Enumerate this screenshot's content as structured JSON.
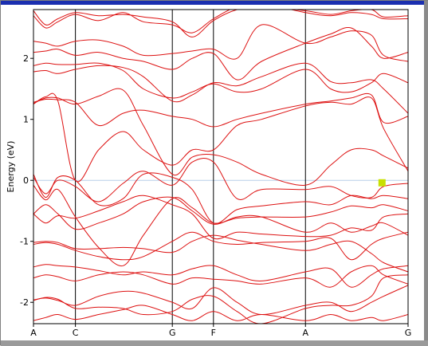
{
  "chart_data": {
    "type": "line",
    "title": "",
    "xlabel": "",
    "ylabel": "Energy (eV)",
    "ylim": [
      -2.35,
      2.8
    ],
    "xlim": [
      0,
      9.2
    ],
    "y_ticks": [
      {
        "value": 2,
        "label": "2"
      },
      {
        "value": 1,
        "label": "1"
      },
      {
        "value": 0,
        "label": "0"
      },
      {
        "value": -1,
        "label": "-1"
      },
      {
        "value": -2,
        "label": "-2"
      }
    ],
    "k_points": [
      {
        "label": "A",
        "x": 0
      },
      {
        "label": "C",
        "x": 1.03
      },
      {
        "label": "G",
        "x": 3.41
      },
      {
        "label": "F",
        "x": 4.42
      },
      {
        "label": "A",
        "x": 6.68
      },
      {
        "label": "G",
        "x": 9.2
      }
    ],
    "fermi_level": 0,
    "marker": {
      "x": 8.56,
      "y": -0.04,
      "color": "#c8e000"
    },
    "series_color": "#dd1111",
    "bands": [
      {
        "x": [
          0,
          0.3,
          0.6,
          1.03,
          1.6,
          2.2,
          2.7,
          3.41,
          3.9,
          4.42,
          5.0,
          5.6,
          6.68,
          7.3,
          7.8,
          8.3,
          8.6,
          9.2
        ],
        "y": [
          -2.3,
          -2.25,
          -2.2,
          -2.28,
          -2.2,
          -2.12,
          -2.05,
          -2.2,
          -2.3,
          -2.15,
          -2.3,
          -2.2,
          -2.3,
          -2.2,
          -2.3,
          -2.25,
          -2.3,
          -2.2
        ]
      },
      {
        "x": [
          0,
          0.3,
          0.6,
          1.03,
          1.6,
          2.2,
          2.7,
          3.41,
          3.9,
          4.42,
          5.0,
          5.6,
          6.68,
          7.3,
          7.8,
          8.3,
          8.6,
          9.2
        ],
        "y": [
          -1.96,
          -1.93,
          -1.97,
          -2.05,
          -1.9,
          -1.82,
          -1.85,
          -2.0,
          -2.1,
          -1.76,
          -2.0,
          -2.2,
          -2.05,
          -2.0,
          -2.15,
          -2.0,
          -1.9,
          -1.72
        ]
      },
      {
        "x": [
          0,
          0.3,
          0.6,
          1.03,
          1.6,
          2.2,
          2.7,
          3.41,
          3.9,
          4.42,
          5.0,
          5.6,
          6.68,
          7.3,
          7.8,
          8.3,
          8.6,
          9.2
        ],
        "y": [
          -1.97,
          -1.92,
          -1.95,
          -2.1,
          -2.08,
          -2.1,
          -2.2,
          -2.15,
          -1.95,
          -1.9,
          -2.15,
          -2.35,
          -2.1,
          -2.05,
          -2.05,
          -1.9,
          -1.6,
          -1.55
        ]
      },
      {
        "x": [
          0,
          0.3,
          0.6,
          1.03,
          1.6,
          2.2,
          2.7,
          3.41,
          3.9,
          4.42,
          5.0,
          5.6,
          6.68,
          7.3,
          7.8,
          8.3,
          8.6,
          9.2
        ],
        "y": [
          -1.6,
          -1.55,
          -1.58,
          -1.65,
          -1.55,
          -1.5,
          -1.55,
          -1.7,
          -1.6,
          -1.62,
          -1.65,
          -1.7,
          -1.6,
          -1.75,
          -1.5,
          -1.4,
          -1.55,
          -1.7
        ]
      },
      {
        "x": [
          0,
          0.3,
          0.6,
          1.03,
          1.6,
          2.2,
          2.7,
          3.41,
          3.9,
          4.42,
          5.0,
          5.6,
          6.68,
          7.3,
          7.8,
          8.3,
          8.6,
          9.2
        ],
        "y": [
          -1.42,
          -1.38,
          -1.4,
          -1.42,
          -1.48,
          -1.55,
          -1.5,
          -1.55,
          -1.45,
          -1.4,
          -1.55,
          -1.65,
          -1.5,
          -1.45,
          -1.75,
          -1.55,
          -1.45,
          -1.4
        ]
      },
      {
        "x": [
          0,
          0.3,
          0.6,
          1.03,
          1.6,
          2.2,
          2.7,
          3.41,
          3.9,
          4.42,
          5.0,
          5.6,
          6.68,
          7.3,
          7.8,
          8.3,
          8.6,
          9.2
        ],
        "y": [
          -1.02,
          -1.0,
          -1.02,
          -1.12,
          -1.12,
          -1.1,
          -1.12,
          -1.18,
          -1.0,
          -0.9,
          -0.98,
          -1.05,
          -1.15,
          -1.05,
          -1.0,
          -1.2,
          -1.35,
          -1.5
        ]
      },
      {
        "x": [
          0,
          0.3,
          0.6,
          1.03,
          1.6,
          2.2,
          2.7,
          3.41,
          3.9,
          4.42,
          5.0,
          5.6,
          6.68,
          7.3,
          7.8,
          8.3,
          8.6,
          9.2
        ],
        "y": [
          -1.05,
          -1.02,
          -1.05,
          -1.15,
          -1.25,
          -1.3,
          -1.25,
          -1.0,
          -0.85,
          -1.0,
          -1.05,
          -1.02,
          -1.0,
          -0.95,
          -1.3,
          -1.05,
          -0.95,
          -0.85
        ]
      },
      {
        "x": [
          0,
          0.3,
          0.6,
          1.03,
          1.6,
          2.2,
          2.7,
          3.41,
          3.9,
          4.42,
          5.0,
          5.6,
          6.68,
          7.3,
          7.8,
          8.3,
          8.6,
          9.2
        ],
        "y": [
          -0.55,
          -0.4,
          -0.55,
          -0.8,
          -0.7,
          -0.55,
          -0.35,
          -0.28,
          -0.5,
          -0.72,
          -0.6,
          -0.6,
          -0.85,
          -0.7,
          -0.85,
          -0.75,
          -0.7,
          -0.9
        ]
      },
      {
        "x": [
          0,
          0.3,
          0.6,
          1.03,
          1.6,
          2.2,
          2.7,
          3.41,
          3.9,
          4.42,
          5.0,
          5.6,
          6.68,
          7.3,
          7.8,
          8.3,
          8.6,
          9.2
        ],
        "y": [
          -0.55,
          -0.7,
          -0.58,
          -0.62,
          -0.5,
          -0.35,
          -0.25,
          -0.4,
          -0.55,
          -0.95,
          -0.85,
          -0.88,
          -0.92,
          -0.9,
          -0.78,
          -0.82,
          -0.6,
          -0.55
        ]
      },
      {
        "x": [
          0,
          0.3,
          0.6,
          1.03,
          1.6,
          2.2,
          2.7,
          3.41,
          3.9,
          4.42,
          5.0,
          5.6,
          6.68,
          7.3,
          7.8,
          8.3,
          8.6,
          9.2
        ],
        "y": [
          -0.08,
          -0.32,
          -0.15,
          -0.6,
          -1.1,
          -1.4,
          -0.9,
          -0.3,
          -0.45,
          -0.7,
          -0.62,
          -0.6,
          -0.6,
          -0.52,
          -0.42,
          -0.45,
          -0.4,
          -0.5
        ]
      },
      {
        "x": [
          0,
          0.3,
          0.6,
          1.03,
          1.6,
          2.2,
          2.7,
          3.41,
          3.9,
          4.42,
          5.0,
          5.6,
          6.68,
          7.3,
          7.8,
          8.3,
          8.6,
          9.2
        ],
        "y": [
          0.1,
          -0.28,
          0.05,
          0.0,
          -0.4,
          -0.3,
          0.1,
          0.05,
          -0.15,
          -0.7,
          -0.48,
          -0.42,
          -0.35,
          -0.4,
          -0.25,
          -0.3,
          -0.25,
          -0.3
        ]
      },
      {
        "x": [
          0,
          0.3,
          0.6,
          1.03,
          1.6,
          2.2,
          2.7,
          3.41,
          3.9,
          4.42,
          5.0,
          5.6,
          6.68,
          7.3,
          7.8,
          8.3,
          8.6,
          9.2
        ],
        "y": [
          0.05,
          -0.22,
          0.0,
          -0.1,
          -0.35,
          -0.05,
          0.15,
          -0.08,
          0.3,
          0.3,
          -0.3,
          -0.15,
          -0.15,
          -0.1,
          -0.25,
          -0.28,
          -0.1,
          -0.05
        ]
      },
      {
        "x": [
          0,
          0.3,
          0.6,
          1.03,
          1.6,
          2.2,
          2.7,
          3.41,
          3.9,
          4.42,
          5.0,
          5.6,
          6.68,
          7.3,
          7.8,
          8.3,
          8.6,
          9.2
        ],
        "y": [
          1.26,
          1.35,
          1.35,
          1.25,
          1.38,
          1.48,
          0.9,
          0.1,
          0.38,
          0.42,
          0.3,
          0.1,
          -0.08,
          0.25,
          0.5,
          0.5,
          0.4,
          0.2
        ]
      },
      {
        "x": [
          0,
          0.3,
          0.6,
          1.03,
          1.6,
          2.2,
          2.7,
          3.41,
          3.9,
          4.42,
          5.0,
          5.6,
          6.68,
          7.3,
          7.8,
          8.3,
          8.6,
          9.2
        ],
        "y": [
          1.25,
          1.37,
          1.3,
          0.0,
          0.5,
          0.8,
          0.5,
          0.25,
          0.5,
          0.5,
          0.9,
          1.0,
          1.22,
          1.28,
          1.25,
          1.35,
          0.85,
          0.15
        ]
      },
      {
        "x": [
          0,
          0.3,
          0.6,
          1.03,
          1.6,
          2.2,
          2.7,
          3.41,
          3.9,
          4.42,
          5.0,
          5.6,
          6.68,
          7.3,
          7.8,
          8.3,
          8.6,
          9.2
        ],
        "y": [
          1.28,
          1.33,
          1.32,
          1.28,
          0.9,
          1.1,
          1.15,
          1.05,
          1.0,
          0.88,
          1.0,
          1.1,
          1.25,
          1.3,
          1.35,
          1.4,
          0.95,
          1.05
        ]
      },
      {
        "x": [
          0,
          0.3,
          0.6,
          1.03,
          1.6,
          2.2,
          2.7,
          3.41,
          3.9,
          4.42,
          5.0,
          5.6,
          6.68,
          7.3,
          7.8,
          8.3,
          8.6,
          9.2
        ],
        "y": [
          1.78,
          1.8,
          1.75,
          1.82,
          1.88,
          1.85,
          1.7,
          1.3,
          1.4,
          1.6,
          1.55,
          1.7,
          1.92,
          1.62,
          1.6,
          1.65,
          1.5,
          1.1
        ]
      },
      {
        "x": [
          0,
          0.3,
          0.6,
          1.03,
          1.6,
          2.2,
          2.7,
          3.41,
          3.9,
          4.42,
          5.0,
          5.6,
          6.68,
          7.3,
          7.8,
          8.3,
          8.6,
          9.2
        ],
        "y": [
          1.88,
          1.92,
          1.9,
          1.9,
          1.92,
          1.8,
          1.5,
          1.35,
          1.45,
          1.58,
          1.45,
          1.5,
          1.82,
          1.5,
          1.45,
          1.6,
          1.75,
          1.6
        ]
      },
      {
        "x": [
          0,
          0.3,
          0.6,
          1.03,
          1.6,
          2.2,
          2.7,
          3.41,
          3.9,
          4.42,
          5.0,
          5.6,
          6.68,
          7.3,
          7.8,
          8.3,
          8.6,
          9.2
        ],
        "y": [
          2.1,
          2.12,
          2.15,
          2.05,
          2.1,
          2.0,
          1.95,
          1.82,
          2.0,
          2.08,
          1.65,
          1.95,
          2.25,
          2.4,
          2.5,
          2.2,
          2.0,
          2.1
        ]
      },
      {
        "x": [
          0,
          0.3,
          0.6,
          1.03,
          1.6,
          2.2,
          2.7,
          3.41,
          3.9,
          4.42,
          5.0,
          5.6,
          6.68,
          7.3,
          7.8,
          8.3,
          8.6,
          9.2
        ],
        "y": [
          2.28,
          2.25,
          2.2,
          2.28,
          2.3,
          2.2,
          2.05,
          2.08,
          2.12,
          2.15,
          2.0,
          2.55,
          2.25,
          2.35,
          2.45,
          2.38,
          2.05,
          1.95
        ]
      },
      {
        "x": [
          0,
          0.3,
          0.6,
          1.03,
          1.6,
          2.2,
          2.7,
          3.41,
          3.9,
          4.42,
          5.0,
          5.6,
          6.68,
          7.3,
          7.8,
          8.3,
          8.6,
          9.2
        ],
        "y": [
          2.78,
          2.55,
          2.65,
          2.75,
          2.7,
          2.72,
          2.68,
          2.6,
          2.35,
          2.62,
          2.8,
          2.85,
          2.78,
          2.72,
          2.78,
          2.8,
          2.68,
          2.7
        ]
      },
      {
        "x": [
          0,
          0.3,
          0.6,
          1.03,
          1.6,
          2.2,
          2.7,
          3.41,
          3.9,
          4.42,
          5.0,
          5.6,
          6.68,
          7.3,
          7.8,
          8.3,
          8.6,
          9.2
        ],
        "y": [
          2.7,
          2.5,
          2.6,
          2.72,
          2.62,
          2.75,
          2.6,
          2.55,
          2.42,
          2.65,
          2.85,
          2.9,
          2.75,
          2.7,
          2.75,
          2.72,
          2.65,
          2.65
        ]
      }
    ]
  }
}
